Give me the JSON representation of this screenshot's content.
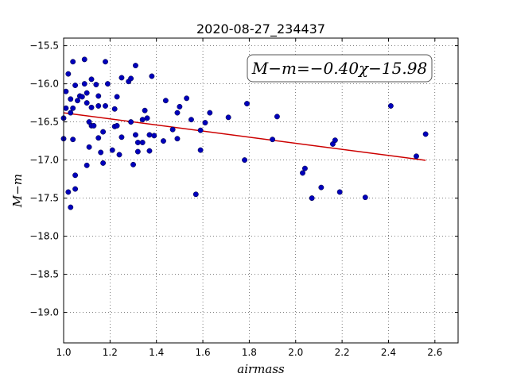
{
  "chart_data": {
    "type": "scatter",
    "title": "2020-08-27_234437",
    "xlabel": "airmass",
    "ylabel": "M−m",
    "xlim": [
      1.0,
      2.7
    ],
    "ylim": [
      -19.4,
      -15.4
    ],
    "xticks": [
      "1.0",
      "1.2",
      "1.4",
      "1.6",
      "1.8",
      "2.0",
      "2.2",
      "2.4",
      "2.6"
    ],
    "yticks": [
      "−15.5",
      "−16.0",
      "−16.5",
      "−17.0",
      "−17.5",
      "−18.0",
      "−18.5",
      "−19.0"
    ],
    "grid": true,
    "annotation": "M−m=−0.40χ−15.98",
    "fit_line": {
      "slope": -0.4,
      "intercept": -15.98,
      "x_range": [
        1.0,
        2.56
      ],
      "color": "#cc0000"
    },
    "marker_color": "#0000bb",
    "points": [
      [
        1.0,
        -16.45
      ],
      [
        1.0,
        -16.72
      ],
      [
        1.01,
        -16.32
      ],
      [
        1.01,
        -16.1
      ],
      [
        1.02,
        -15.87
      ],
      [
        1.02,
        -17.42
      ],
      [
        1.03,
        -16.2
      ],
      [
        1.03,
        -16.38
      ],
      [
        1.03,
        -17.62
      ],
      [
        1.04,
        -15.71
      ],
      [
        1.04,
        -16.32
      ],
      [
        1.04,
        -16.73
      ],
      [
        1.05,
        -17.2
      ],
      [
        1.05,
        -17.38
      ],
      [
        1.05,
        -16.02
      ],
      [
        1.06,
        -16.22
      ],
      [
        1.07,
        -16.16
      ],
      [
        1.08,
        -16.17
      ],
      [
        1.09,
        -15.68
      ],
      [
        1.09,
        -16.0
      ],
      [
        1.1,
        -16.12
      ],
      [
        1.1,
        -16.25
      ],
      [
        1.1,
        -17.07
      ],
      [
        1.11,
        -16.5
      ],
      [
        1.11,
        -16.83
      ],
      [
        1.12,
        -15.94
      ],
      [
        1.12,
        -16.55
      ],
      [
        1.12,
        -16.31
      ],
      [
        1.13,
        -16.55
      ],
      [
        1.14,
        -16.01
      ],
      [
        1.15,
        -16.29
      ],
      [
        1.15,
        -16.16
      ],
      [
        1.15,
        -16.71
      ],
      [
        1.16,
        -16.9
      ],
      [
        1.17,
        -16.63
      ],
      [
        1.17,
        -17.04
      ],
      [
        1.18,
        -15.71
      ],
      [
        1.18,
        -16.29
      ],
      [
        1.19,
        -16.0
      ],
      [
        1.21,
        -16.87
      ],
      [
        1.22,
        -16.56
      ],
      [
        1.22,
        -16.33
      ],
      [
        1.23,
        -16.55
      ],
      [
        1.23,
        -16.17
      ],
      [
        1.24,
        -16.93
      ],
      [
        1.25,
        -16.7
      ],
      [
        1.25,
        -15.92
      ],
      [
        1.28,
        -15.97
      ],
      [
        1.29,
        -15.93
      ],
      [
        1.29,
        -16.5
      ],
      [
        1.3,
        -17.06
      ],
      [
        1.31,
        -15.76
      ],
      [
        1.31,
        -16.67
      ],
      [
        1.32,
        -16.89
      ],
      [
        1.32,
        -16.77
      ],
      [
        1.34,
        -16.77
      ],
      [
        1.34,
        -16.47
      ],
      [
        1.35,
        -16.35
      ],
      [
        1.36,
        -16.45
      ],
      [
        1.37,
        -16.67
      ],
      [
        1.37,
        -16.88
      ],
      [
        1.38,
        -15.9
      ],
      [
        1.39,
        -16.68
      ],
      [
        1.43,
        -16.75
      ],
      [
        1.44,
        -16.22
      ],
      [
        1.47,
        -16.6
      ],
      [
        1.49,
        -16.38
      ],
      [
        1.49,
        -16.72
      ],
      [
        1.5,
        -16.3
      ],
      [
        1.53,
        -16.19
      ],
      [
        1.55,
        -16.47
      ],
      [
        1.57,
        -17.45
      ],
      [
        1.59,
        -16.87
      ],
      [
        1.59,
        -16.61
      ],
      [
        1.61,
        -16.51
      ],
      [
        1.63,
        -16.38
      ],
      [
        1.71,
        -16.44
      ],
      [
        1.78,
        -17.0
      ],
      [
        1.79,
        -16.26
      ],
      [
        1.9,
        -16.73
      ],
      [
        1.92,
        -16.43
      ],
      [
        2.03,
        -17.17
      ],
      [
        2.04,
        -17.11
      ],
      [
        2.07,
        -17.5
      ],
      [
        2.11,
        -17.36
      ],
      [
        2.16,
        -16.79
      ],
      [
        2.17,
        -16.74
      ],
      [
        2.19,
        -17.42
      ],
      [
        2.3,
        -17.49
      ],
      [
        2.41,
        -16.29
      ],
      [
        2.52,
        -16.95
      ],
      [
        2.56,
        -16.66
      ]
    ]
  }
}
